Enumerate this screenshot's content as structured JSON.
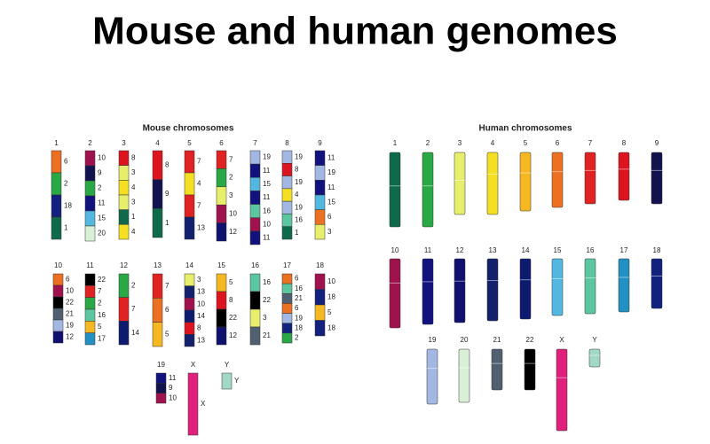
{
  "title": "Mouse and human genomes",
  "mouse": {
    "title": "Mouse chromosomes",
    "chromosomes": [
      {
        "label": "1",
        "segments": [
          "6",
          "2",
          "18",
          "1"
        ]
      },
      {
        "label": "2",
        "segments": [
          "10",
          "9",
          "2",
          "11",
          "15",
          "20"
        ]
      },
      {
        "label": "3",
        "segments": [
          "8",
          "3",
          "4",
          "3",
          "1",
          "4"
        ]
      },
      {
        "label": "4",
        "segments": [
          "8",
          "9",
          "1"
        ]
      },
      {
        "label": "5",
        "segments": [
          "7",
          "4",
          "7",
          "13"
        ]
      },
      {
        "label": "6",
        "segments": [
          "7",
          "2",
          "3",
          "10",
          "12"
        ]
      },
      {
        "label": "7",
        "segments": [
          "19",
          "11",
          "15",
          "11",
          "16",
          "10",
          "11"
        ]
      },
      {
        "label": "8",
        "segments": [
          "19",
          "8",
          "19",
          "4",
          "19",
          "16",
          "1"
        ]
      },
      {
        "label": "9",
        "segments": [
          "11",
          "19",
          "11",
          "15",
          "6",
          "3"
        ]
      },
      {
        "label": "10",
        "segments": [
          "6",
          "10",
          "22",
          "21",
          "19",
          "12"
        ]
      },
      {
        "label": "11",
        "segments": [
          "22",
          "7",
          "2",
          "16",
          "5",
          "17"
        ]
      },
      {
        "label": "12",
        "segments": [
          "2",
          "7",
          "14"
        ]
      },
      {
        "label": "13",
        "segments": [
          "7",
          "6",
          "5"
        ]
      },
      {
        "label": "14",
        "segments": [
          "3",
          "13",
          "10",
          "14",
          "8",
          "13"
        ]
      },
      {
        "label": "15",
        "segments": [
          "5",
          "8",
          "22",
          "12"
        ]
      },
      {
        "label": "16",
        "segments": [
          "16",
          "22",
          "3",
          "21"
        ]
      },
      {
        "label": "17",
        "segments": [
          "6",
          "16",
          "21",
          "6",
          "19",
          "18",
          "2"
        ]
      },
      {
        "label": "18",
        "segments": [
          "10",
          "18",
          "5",
          "18"
        ]
      },
      {
        "label": "19",
        "segments": [
          "11",
          "9",
          "10"
        ]
      },
      {
        "label": "X",
        "segments": [
          "X"
        ]
      },
      {
        "label": "Y",
        "segments": [
          "Y"
        ]
      }
    ]
  },
  "human": {
    "title": "Human chromosomes",
    "chromosomes": [
      {
        "label": "1",
        "color": "#0f6a4c"
      },
      {
        "label": "2",
        "color": "#2aa845"
      },
      {
        "label": "3",
        "color": "#e6ee6c"
      },
      {
        "label": "4",
        "color": "#f4df22"
      },
      {
        "label": "5",
        "color": "#f5b822"
      },
      {
        "label": "6",
        "color": "#ec7022"
      },
      {
        "label": "7",
        "color": "#e02222"
      },
      {
        "label": "8",
        "color": "#dc1420"
      },
      {
        "label": "9",
        "color": "#12124e"
      },
      {
        "label": "10",
        "color": "#a0124e"
      },
      {
        "label": "11",
        "color": "#12127e"
      },
      {
        "label": "12",
        "color": "#10106e"
      },
      {
        "label": "13",
        "color": "#12206e"
      },
      {
        "label": "14",
        "color": "#0c1a70"
      },
      {
        "label": "15",
        "color": "#52b8e0"
      },
      {
        "label": "16",
        "color": "#5cc6a0"
      },
      {
        "label": "17",
        "color": "#2290c2"
      },
      {
        "label": "18",
        "color": "#12207e"
      },
      {
        "label": "19",
        "color": "#a2b8e2"
      },
      {
        "label": "20",
        "color": "#d8f0d6"
      },
      {
        "label": "21",
        "color": "#506070"
      },
      {
        "label": "22",
        "color": "#000000"
      },
      {
        "label": "X",
        "color": "#e0207a"
      },
      {
        "label": "Y",
        "color": "#a2d8c6"
      }
    ]
  }
}
